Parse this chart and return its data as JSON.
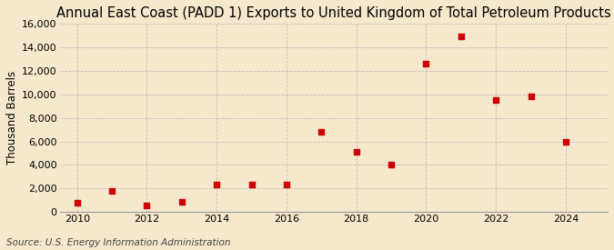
{
  "title": "Annual East Coast (PADD 1) Exports to United Kingdom of Total Petroleum Products",
  "ylabel": "Thousand Barrels",
  "source": "Source: U.S. Energy Information Administration",
  "background_color": "#f5e8cc",
  "years": [
    2010,
    2011,
    2012,
    2013,
    2014,
    2015,
    2016,
    2017,
    2018,
    2019,
    2020,
    2021,
    2022,
    2023,
    2024
  ],
  "values": [
    800,
    1800,
    600,
    900,
    2300,
    2300,
    2300,
    6800,
    5100,
    4000,
    12600,
    14900,
    9500,
    9800,
    6000
  ],
  "marker_color": "#cc0000",
  "marker_size": 4.5,
  "xlim": [
    2009.5,
    2025.2
  ],
  "ylim": [
    0,
    16000
  ],
  "yticks": [
    0,
    2000,
    4000,
    6000,
    8000,
    10000,
    12000,
    14000,
    16000
  ],
  "xticks": [
    2010,
    2012,
    2014,
    2016,
    2018,
    2020,
    2022,
    2024
  ],
  "grid_color": "#bbbbbb",
  "title_fontsize": 10.5,
  "label_fontsize": 8.5,
  "tick_fontsize": 8,
  "source_fontsize": 7.5
}
